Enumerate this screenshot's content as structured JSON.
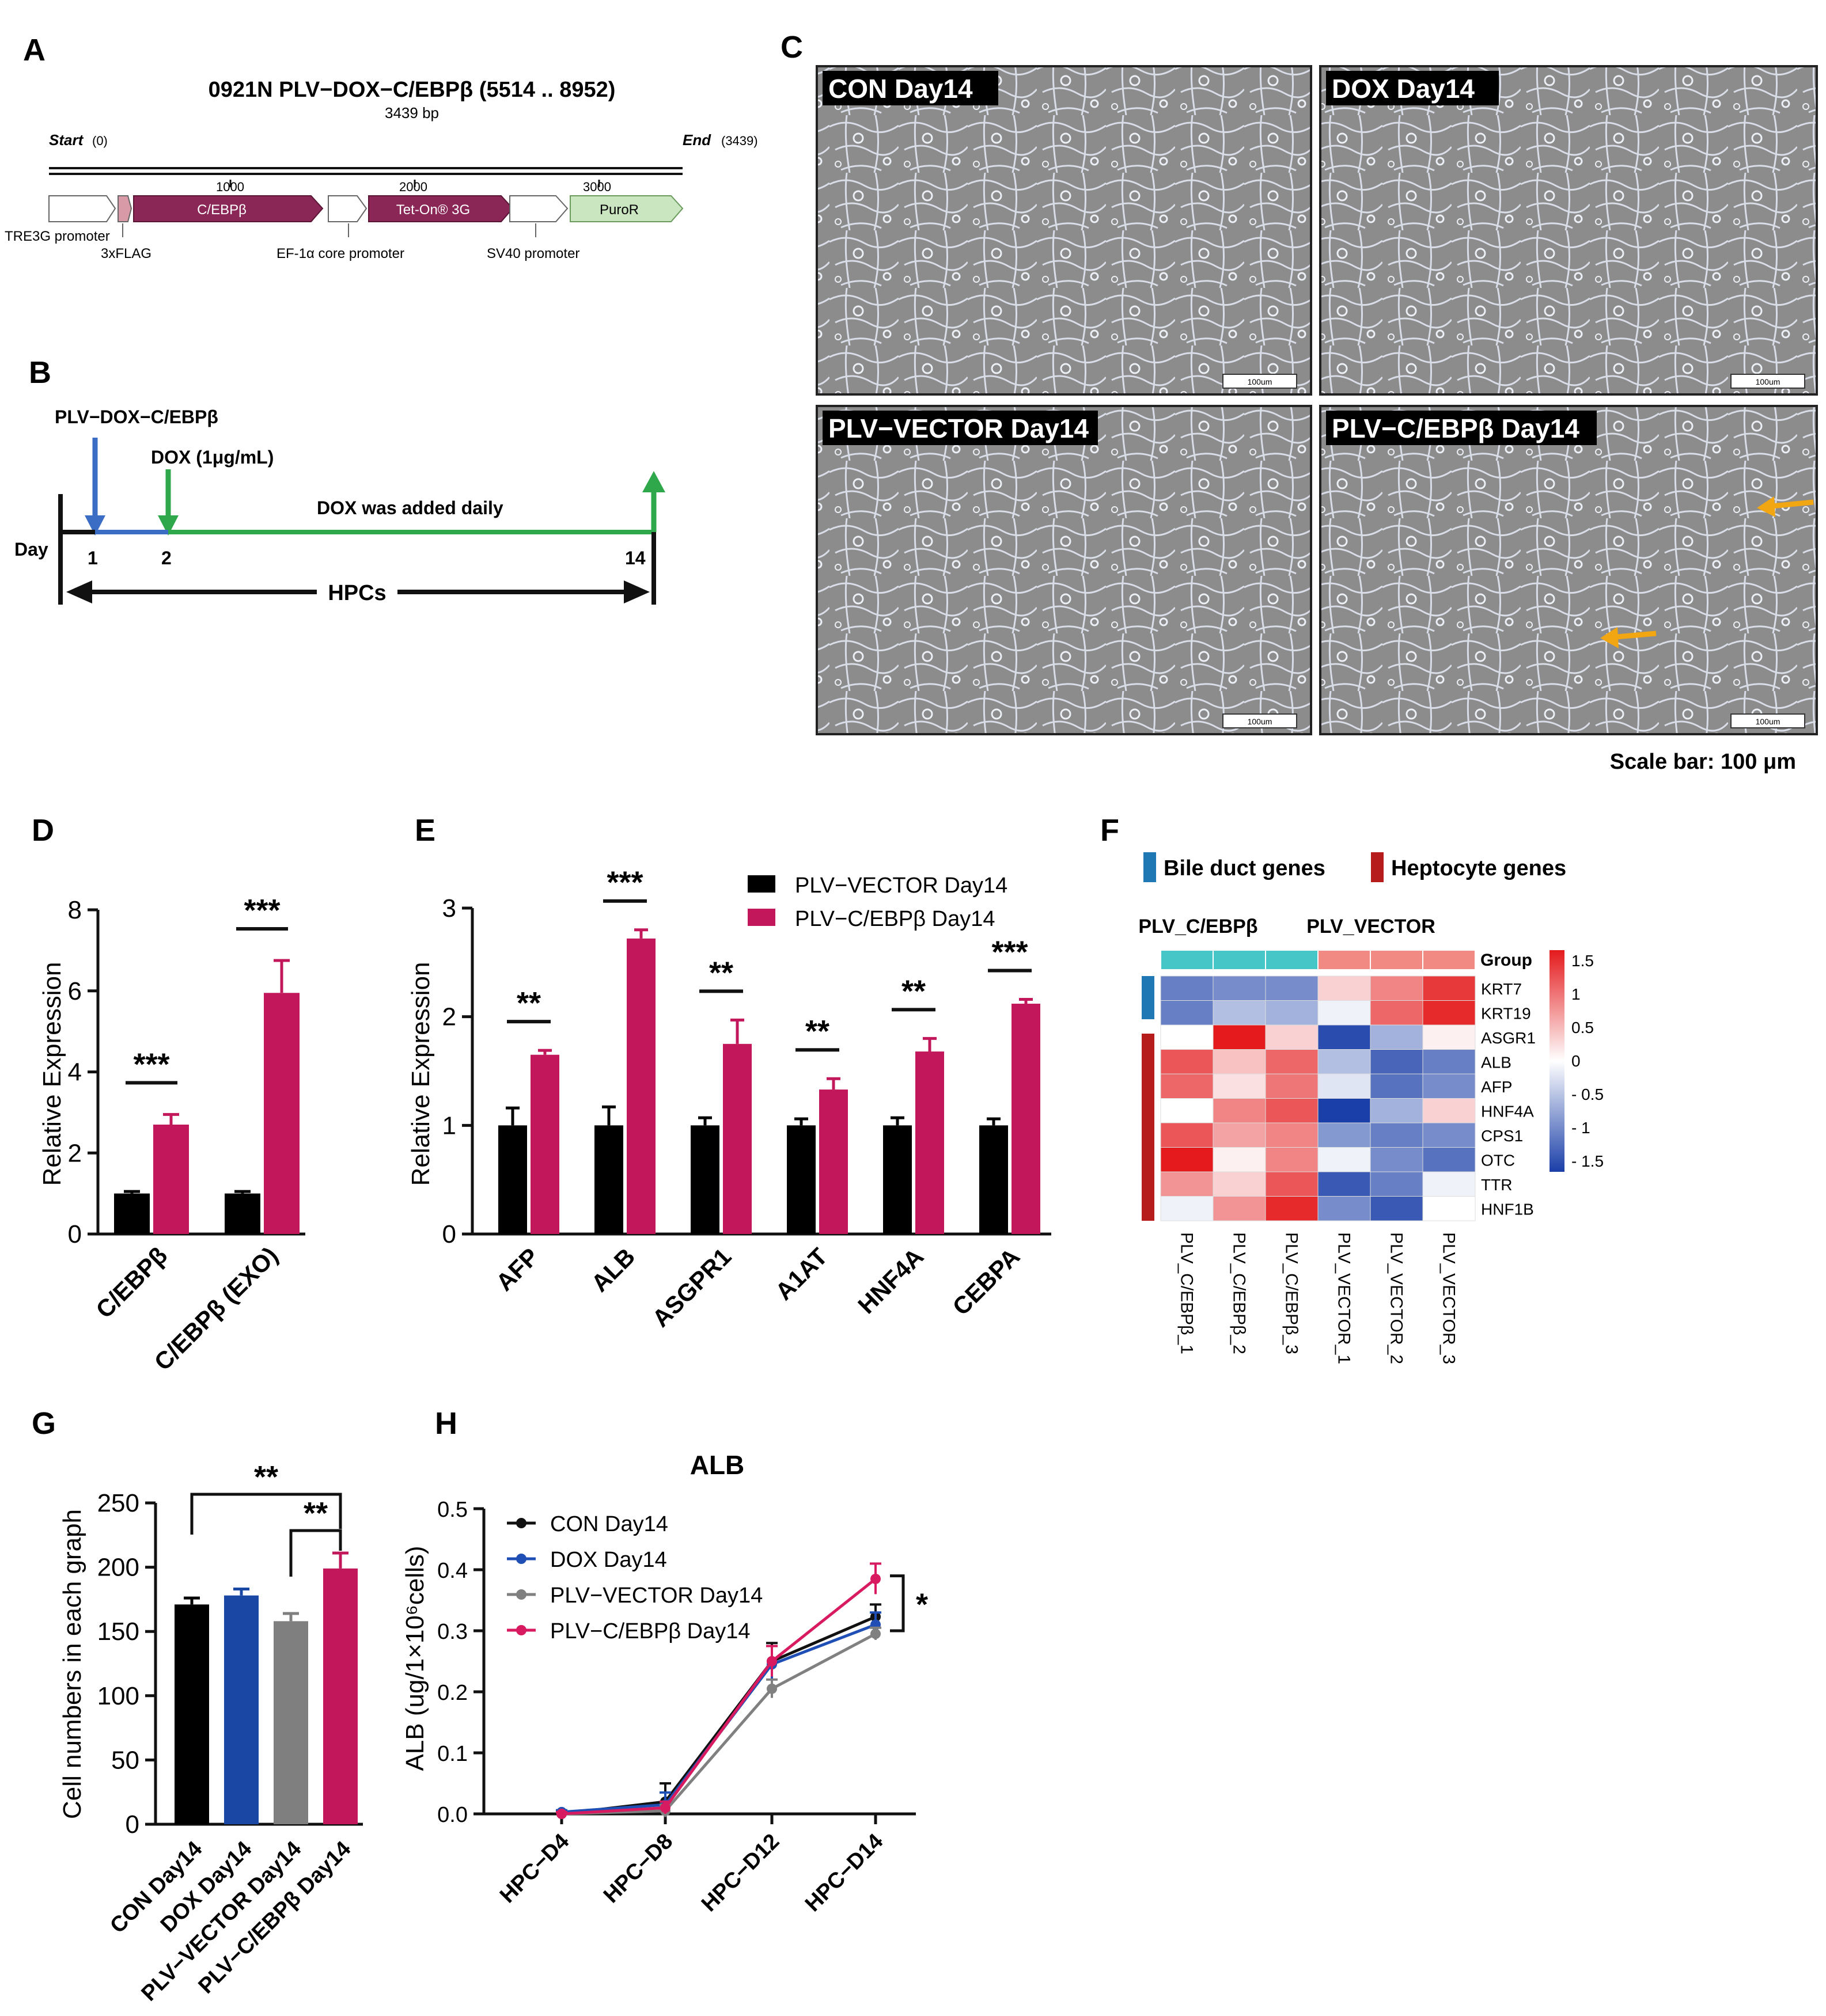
{
  "panels": {
    "A": "A",
    "B": "B",
    "C": "C",
    "D": "D",
    "E": "E",
    "F": "F",
    "G": "G",
    "H": "H"
  },
  "panel_a": {
    "title": "0921N PLV−DOX−C/EBPβ (5514 .. 8952)",
    "length": "3439 bp",
    "start_label": "Start",
    "start_pos": "(0)",
    "end_label": "End",
    "end_pos": "(3439)",
    "ruler": [
      "1000",
      "2000",
      "3000"
    ],
    "features": [
      {
        "name": "",
        "below": "TRE3G promoter",
        "color": "#ffffff"
      },
      {
        "name": "",
        "below": "3xFLAG",
        "color": "#d99aa7"
      },
      {
        "name": "C/EBPβ",
        "below": "",
        "color": "#8b2756"
      },
      {
        "name": "",
        "below": "EF-1α core promoter",
        "color": "#ffffff"
      },
      {
        "name": "Tet-On® 3G",
        "below": "",
        "color": "#8b2756"
      },
      {
        "name": "",
        "below": "SV40 promoter",
        "color": "#ffffff"
      },
      {
        "name": "PuroR",
        "below": "",
        "color": "#c9e6c0"
      }
    ]
  },
  "panel_b": {
    "construct": "PLV−DOX−C/EBPβ",
    "dox": "DOX (1μg/mL)",
    "daily": "DOX was added daily",
    "day_label": "Day",
    "days": [
      "1",
      "2",
      "14"
    ],
    "cells": "HPCs"
  },
  "panel_c": {
    "images": [
      "CON Day14",
      "DOX Day14",
      "PLV−VECTOR Day14",
      "PLV−C/EBPβ Day14"
    ],
    "scalebar_text": "100um",
    "caption": "Scale bar: 100 μm"
  },
  "chart_data": [
    {
      "panel": "D",
      "type": "bar",
      "categories": [
        "C/EBPβ",
        "C/EBPβ (EXO)"
      ],
      "series": [
        {
          "values": [
            1.0,
            1.0
          ],
          "errors": [
            0.05,
            0.05
          ],
          "color": "#000000"
        },
        {
          "values": [
            2.7,
            5.95
          ],
          "errors": [
            0.25,
            0.8
          ],
          "color": "#c2185b"
        }
      ],
      "significance": [
        "***",
        "***"
      ],
      "ylabel": "Relative Expression",
      "ylim": [
        0,
        8
      ],
      "yticks": [
        "0",
        "2",
        "4",
        "6",
        "8"
      ]
    },
    {
      "panel": "E",
      "type": "bar",
      "categories": [
        "AFP",
        "ALB",
        "ASGPR1",
        "A1AT",
        "HNF4A",
        "CEBPA"
      ],
      "series": [
        {
          "name": "PLV−VECTOR Day14",
          "values": [
            1.0,
            1.0,
            1.0,
            1.0,
            1.0,
            1.0
          ],
          "errors": [
            0.16,
            0.17,
            0.07,
            0.06,
            0.07,
            0.06
          ],
          "color": "#000000"
        },
        {
          "name": "PLV−C/EBPβ Day14",
          "values": [
            1.65,
            2.72,
            1.75,
            1.33,
            1.68,
            2.12
          ],
          "errors": [
            0.04,
            0.08,
            0.22,
            0.1,
            0.12,
            0.04
          ],
          "color": "#c2185b"
        }
      ],
      "significance": [
        "**",
        "***",
        "**",
        "**",
        "**",
        "***"
      ],
      "ylabel": "Relative Expression",
      "ylim": [
        0,
        3
      ],
      "yticks": [
        "0",
        "1",
        "2",
        "3"
      ]
    },
    {
      "panel": "F",
      "type": "heatmap",
      "legend_groups": [
        "Bile duct genes",
        "Heptocyte genes"
      ],
      "group_headers": [
        "PLV_C/EBPβ",
        "PLV_VECTOR"
      ],
      "group_row_label": "Group",
      "rows": [
        "KRT7",
        "KRT19",
        "ASGR1",
        "ALB",
        "AFP",
        "HNF4A",
        "CPS1",
        "OTC",
        "TTR",
        "HNF1B"
      ],
      "columns": [
        "PLV_C/EBPβ_1",
        "PLV_C/EBPβ_2",
        "PLV_C/EBPβ_3",
        "PLV_VECTOR_1",
        "PLV_VECTOR_2",
        "PLV_VECTOR_3"
      ],
      "values": [
        [
          -1.0,
          -0.9,
          -0.9,
          0.3,
          0.8,
          1.3
        ],
        [
          -1.0,
          -0.5,
          -0.6,
          -0.1,
          1.0,
          1.4
        ],
        [
          0.0,
          1.5,
          0.3,
          -1.4,
          -0.6,
          0.1
        ],
        [
          1.1,
          0.4,
          1.0,
          -0.5,
          -1.2,
          -1.0
        ],
        [
          1.0,
          0.2,
          0.9,
          -0.2,
          -1.1,
          -0.9
        ],
        [
          0.0,
          0.8,
          1.1,
          -1.5,
          -0.6,
          0.3
        ],
        [
          1.1,
          0.6,
          0.8,
          -0.8,
          -1.0,
          -0.9
        ],
        [
          1.5,
          0.1,
          0.8,
          -0.1,
          -0.9,
          -1.1
        ],
        [
          0.7,
          0.3,
          1.1,
          -1.3,
          -1.0,
          -0.1
        ],
        [
          -0.1,
          0.7,
          1.4,
          -0.9,
          -1.3,
          0.0
        ]
      ],
      "scale_ticks": [
        "1.5",
        "1",
        "0.5",
        "0",
        "- 0.5",
        "- 1",
        "- 1.5"
      ],
      "bile_color": "#1f77b4",
      "hep_color": "#b71c1c"
    },
    {
      "panel": "G",
      "type": "bar",
      "categories": [
        "CON Day14",
        "DOX Day14",
        "PLV−VECTOR Day14",
        "PLV−C/EBPβ Day14"
      ],
      "values": [
        171,
        178,
        158,
        199
      ],
      "errors": [
        5,
        5,
        6,
        12
      ],
      "colors": [
        "#000000",
        "#1a47a3",
        "#7f7f7f",
        "#c2185b"
      ],
      "significance": [
        "**",
        "**"
      ],
      "ylabel": "Cell numbers in each graph",
      "ylim": [
        0,
        250
      ],
      "yticks": [
        "0",
        "50",
        "100",
        "150",
        "200",
        "250"
      ]
    },
    {
      "panel": "H",
      "type": "line",
      "title": "ALB",
      "categories": [
        "HPC−D4",
        "HPC−D8",
        "HPC−D12",
        "HPC−D14"
      ],
      "series": [
        {
          "name": "CON Day14",
          "values": [
            0.0,
            0.02,
            0.25,
            0.323
          ],
          "errors": [
            0.004,
            0.03,
            0.03,
            0.02
          ],
          "color": "#111111"
        },
        {
          "name": "DOX Day14",
          "values": [
            0.003,
            0.015,
            0.245,
            0.31
          ],
          "errors": [
            0.003,
            0.02,
            0.03,
            0.02
          ],
          "color": "#1f4fb5"
        },
        {
          "name": "PLV−VECTOR Day14",
          "values": [
            0.0,
            0.005,
            0.205,
            0.295
          ],
          "errors": [
            0.003,
            0.01,
            0.015,
            0.01
          ],
          "color": "#808080"
        },
        {
          "name": "PLV−C/EBPβ Day14",
          "values": [
            0.0,
            0.01,
            0.25,
            0.385
          ],
          "errors": [
            0.003,
            0.01,
            0.025,
            0.025
          ],
          "color": "#d81b60"
        }
      ],
      "significance": "*",
      "ylabel": "ALB (ug/1×10⁶cells)",
      "ylim": [
        0,
        0.5
      ],
      "yticks": [
        "0.0",
        "0.1",
        "0.2",
        "0.3",
        "0.4",
        "0.5"
      ]
    }
  ]
}
